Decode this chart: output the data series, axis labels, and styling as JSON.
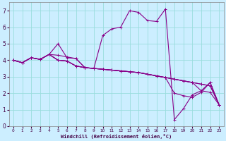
{
  "xlabel": "Windchill (Refroidissement éolien,°C)",
  "bg_color": "#cceeff",
  "grid_color": "#99dddd",
  "line_color": "#880088",
  "xlim": [
    -0.5,
    23.5
  ],
  "ylim": [
    0,
    7.5
  ],
  "xticks": [
    0,
    1,
    2,
    3,
    4,
    5,
    6,
    7,
    8,
    9,
    10,
    11,
    12,
    13,
    14,
    15,
    16,
    17,
    18,
    19,
    20,
    21,
    22,
    23
  ],
  "yticks": [
    0,
    1,
    2,
    3,
    4,
    5,
    6,
    7
  ],
  "series": [
    {
      "x": [
        0,
        1,
        2,
        3,
        4,
        5,
        6,
        7,
        8,
        9,
        10,
        11,
        12,
        13,
        14,
        15,
        16,
        17,
        18,
        19,
        20,
        21,
        22,
        23
      ],
      "y": [
        4.0,
        3.85,
        4.15,
        4.05,
        4.35,
        4.3,
        4.2,
        4.1,
        3.55,
        3.5,
        5.5,
        5.9,
        6.0,
        7.0,
        6.9,
        6.4,
        6.35,
        7.1,
        0.4,
        1.05,
        1.9,
        2.15,
        2.65,
        1.3
      ]
    },
    {
      "x": [
        0,
        1,
        2,
        3,
        4,
        5,
        6,
        7,
        8,
        9,
        10,
        11,
        12,
        13,
        14,
        15,
        16,
        17,
        18,
        19,
        20,
        21,
        22,
        23
      ],
      "y": [
        4.0,
        3.85,
        4.15,
        4.05,
        4.35,
        5.0,
        4.15,
        4.1,
        3.55,
        3.5,
        3.45,
        3.4,
        3.35,
        3.3,
        3.25,
        3.15,
        3.05,
        2.95,
        2.85,
        2.75,
        2.65,
        2.55,
        2.45,
        1.3
      ]
    },
    {
      "x": [
        0,
        1,
        2,
        3,
        4,
        5,
        6,
        7,
        8,
        9,
        10,
        11,
        12,
        13,
        14,
        15,
        16,
        17,
        18,
        19,
        20,
        21,
        22,
        23
      ],
      "y": [
        4.0,
        3.85,
        4.15,
        4.05,
        4.35,
        4.0,
        3.95,
        3.65,
        3.55,
        3.5,
        3.45,
        3.4,
        3.35,
        3.3,
        3.25,
        3.15,
        3.05,
        2.95,
        2.85,
        2.75,
        2.65,
        2.55,
        2.45,
        1.3
      ]
    },
    {
      "x": [
        0,
        1,
        2,
        3,
        4,
        5,
        6,
        7,
        8,
        9,
        10,
        11,
        12,
        13,
        14,
        15,
        16,
        17,
        18,
        19,
        20,
        21,
        22,
        23
      ],
      "y": [
        4.0,
        3.85,
        4.15,
        4.05,
        4.35,
        4.0,
        3.95,
        3.65,
        3.55,
        3.5,
        3.45,
        3.4,
        3.35,
        3.3,
        3.25,
        3.15,
        3.05,
        2.95,
        2.0,
        1.85,
        1.75,
        2.05,
        2.65,
        1.3
      ]
    },
    {
      "x": [
        0,
        1,
        2,
        3,
        4,
        5,
        6,
        7,
        8,
        9,
        10,
        11,
        12,
        13,
        14,
        15,
        16,
        17,
        18,
        19,
        20,
        21,
        22,
        23
      ],
      "y": [
        4.0,
        3.85,
        4.15,
        4.05,
        4.35,
        4.0,
        3.95,
        3.65,
        3.55,
        3.5,
        3.45,
        3.4,
        3.35,
        3.3,
        3.25,
        3.15,
        3.05,
        2.95,
        2.85,
        2.75,
        2.65,
        2.15,
        2.05,
        1.3
      ]
    }
  ]
}
